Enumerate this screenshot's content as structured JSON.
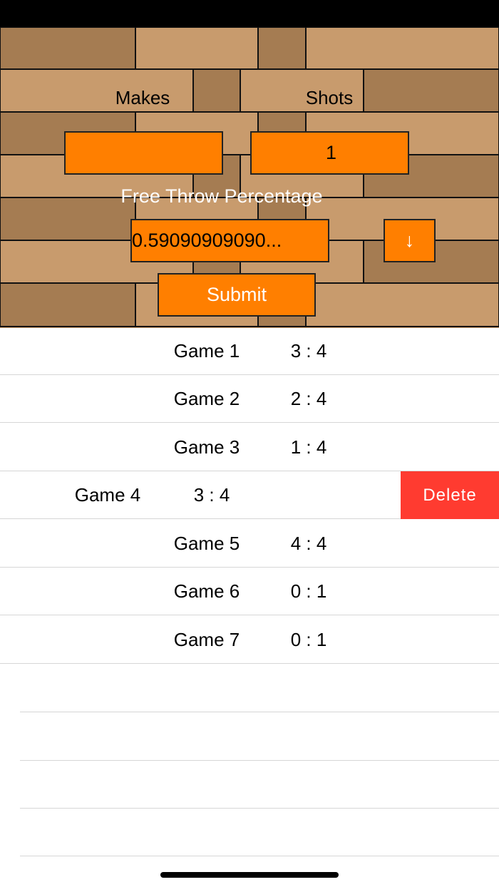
{
  "form": {
    "makes_label": "Makes",
    "shots_label": "Shots",
    "makes_value": "",
    "shots_value": "1",
    "percentage_label": "Free Throw Percentage",
    "percentage_value": "0.59090909090...",
    "sort_button": "↓",
    "submit_button": "Submit"
  },
  "table": {
    "rows": [
      {
        "game": "Game 1",
        "score": "3 : 4"
      },
      {
        "game": "Game 2",
        "score": "2 : 4"
      },
      {
        "game": "Game 3",
        "score": "1 : 4"
      },
      {
        "game": "Game 4",
        "score": "3 : 4"
      },
      {
        "game": "Game 5",
        "score": "4 : 4"
      },
      {
        "game": "Game 6",
        "score": "0 : 1"
      },
      {
        "game": "Game 7",
        "score": "0 : 1"
      }
    ],
    "delete_action": "Delete"
  }
}
